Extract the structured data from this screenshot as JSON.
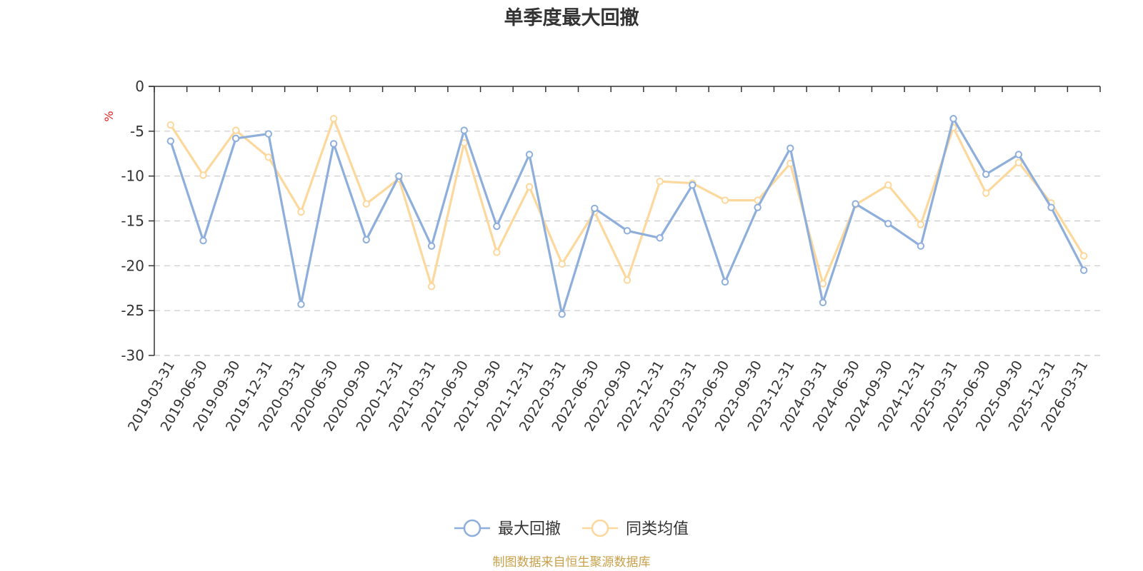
{
  "chart_data": {
    "type": "line",
    "title": "单季度最大回撤",
    "ylabel": "%",
    "ylim": [
      -30,
      0
    ],
    "yticks": [
      0,
      -5,
      -10,
      -15,
      -20,
      -25,
      -30
    ],
    "grid": true,
    "legend_position": "bottom-center",
    "categories": [
      "2019-03-31",
      "2019-06-30",
      "2019-09-30",
      "2019-12-31",
      "2020-03-31",
      "2020-06-30",
      "2020-09-30",
      "2020-12-31",
      "2021-03-31",
      "2021-06-30",
      "2021-09-30",
      "2021-12-31",
      "2022-03-31",
      "2022-06-30",
      "2022-09-30",
      "2022-12-31",
      "2023-03-31",
      "2023-06-30",
      "2023-09-30",
      "2023-12-31",
      "2024-03-31",
      "2024-06-30",
      "2024-09-30",
      "2024-12-31",
      "2025-03-31",
      "2025-06-30",
      "2025-09-30",
      "2025-12-31",
      "2026-03-31"
    ],
    "series": [
      {
        "name": "最大回撤",
        "color": "#8eaedb",
        "values": [
          -6.1,
          -17.2,
          -5.8,
          -5.3,
          -24.3,
          -6.4,
          -17.1,
          -10.0,
          -17.8,
          -4.9,
          -15.6,
          -7.6,
          -25.4,
          -13.6,
          -16.1,
          -16.9,
          -11.0,
          -21.8,
          -13.5,
          -6.9,
          -24.1,
          -13.1,
          -15.3,
          -17.8,
          -3.6,
          -9.8,
          -7.6,
          -13.5,
          -20.5
        ]
      },
      {
        "name": "同类均值",
        "color": "#fcd89c",
        "values": [
          -4.3,
          -9.9,
          -4.9,
          -7.9,
          -14.0,
          -3.6,
          -13.1,
          -10.3,
          -22.3,
          -6.3,
          -18.5,
          -11.2,
          -19.8,
          -14.0,
          -21.6,
          -10.6,
          -10.8,
          -12.7,
          -12.7,
          -8.6,
          -22.0,
          -13.2,
          -11.0,
          -15.4,
          -4.6,
          -11.9,
          -8.5,
          -13.0,
          -18.9
        ]
      }
    ]
  },
  "footer": {
    "source": "制图数据来自恒生聚源数据库"
  }
}
